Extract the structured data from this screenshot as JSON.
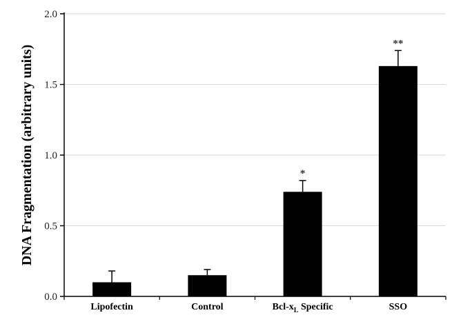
{
  "chart_data": {
    "type": "bar",
    "categories": [
      "Lipofectin",
      "Control",
      "Bcl-xL Specific",
      "SSO"
    ],
    "category_labels": [
      {
        "text": "Lipofectin",
        "sub": ""
      },
      {
        "text": "Control",
        "sub": ""
      },
      {
        "text": "Bcl-x",
        "sub": "L",
        "after": " Specific"
      },
      {
        "text": "SSO",
        "sub": ""
      }
    ],
    "values": [
      0.1,
      0.15,
      0.74,
      1.63
    ],
    "error_upper": [
      0.08,
      0.04,
      0.08,
      0.11
    ],
    "significance": [
      "",
      "",
      "*",
      "**"
    ],
    "ylabel": "DNA Fragmentation (arbitrary units)",
    "xlabel": "",
    "ylim": [
      0,
      2.0
    ],
    "yticks": [
      0.0,
      0.5,
      1.0,
      1.5,
      2.0
    ],
    "ytick_labels": [
      "0.0",
      "0.5",
      "1.0",
      "1.5",
      "2.0"
    ],
    "grid": true,
    "colors": {
      "bar": "#000000",
      "grid": "#d9d9d9",
      "axis": "#000000"
    }
  }
}
